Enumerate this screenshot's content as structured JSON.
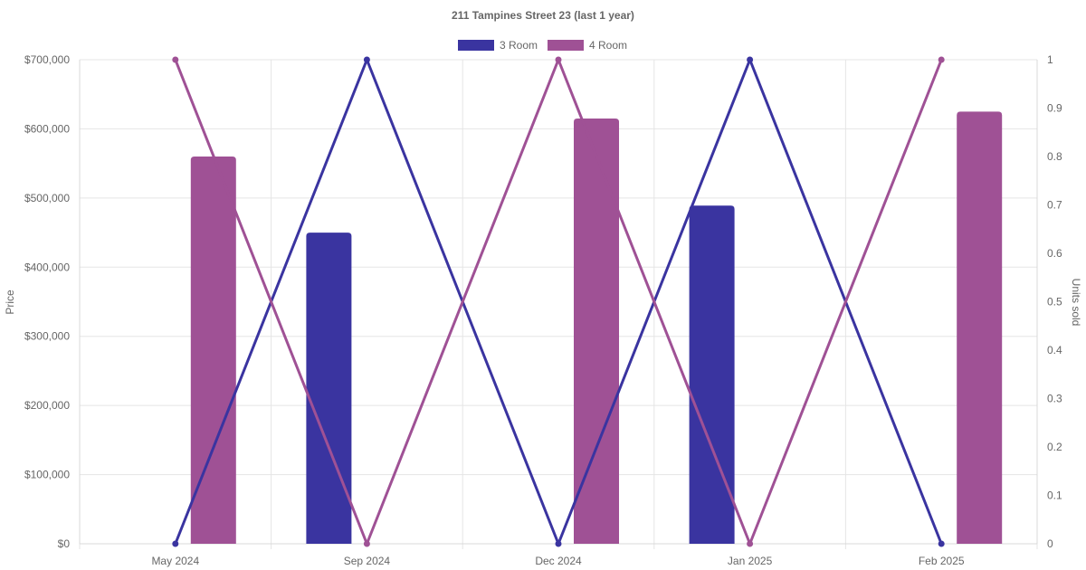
{
  "chart_data": {
    "type": "bar",
    "title": "211 Tampines Street 23 (last 1 year)",
    "categories": [
      "May 2024",
      "Sep 2024",
      "Dec 2024",
      "Jan 2025",
      "Feb 2025"
    ],
    "y_left": {
      "label": "Price",
      "ticks": [
        "$0",
        "$100,000",
        "$200,000",
        "$300,000",
        "$400,000",
        "$500,000",
        "$600,000",
        "$700,000"
      ],
      "range": [
        0,
        700000
      ]
    },
    "y_right": {
      "label": "Units sold",
      "ticks": [
        "0",
        "0.1",
        "0.2",
        "0.3",
        "0.4",
        "0.5",
        "0.6",
        "0.7",
        "0.8",
        "0.9",
        "1"
      ],
      "range": [
        0,
        1
      ]
    },
    "series": [
      {
        "name": "3 Room",
        "color": "#3a34a0",
        "price": [
          null,
          450000,
          null,
          489000,
          null
        ],
        "units_sold": [
          0,
          1,
          0,
          1,
          0
        ]
      },
      {
        "name": "4 Room",
        "color": "#9f5195",
        "price": [
          560000,
          null,
          615000,
          null,
          625000
        ],
        "units_sold": [
          1,
          0,
          1,
          0,
          1
        ]
      }
    ],
    "legend_position": "top",
    "grid": true
  }
}
